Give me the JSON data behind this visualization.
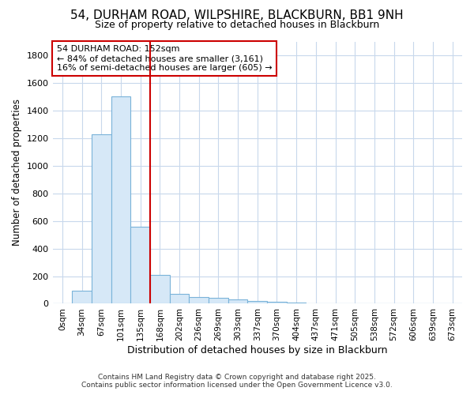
{
  "title1": "54, DURHAM ROAD, WILPSHIRE, BLACKBURN, BB1 9NH",
  "title2": "Size of property relative to detached houses in Blackburn",
  "xlabel": "Distribution of detached houses by size in Blackburn",
  "ylabel": "Number of detached properties",
  "bar_labels": [
    "0sqm",
    "34sqm",
    "67sqm",
    "101sqm",
    "135sqm",
    "168sqm",
    "202sqm",
    "236sqm",
    "269sqm",
    "303sqm",
    "337sqm",
    "370sqm",
    "404sqm",
    "437sqm",
    "471sqm",
    "505sqm",
    "538sqm",
    "572sqm",
    "606sqm",
    "639sqm",
    "673sqm"
  ],
  "bar_values": [
    0,
    97,
    1230,
    1500,
    560,
    210,
    72,
    47,
    40,
    33,
    22,
    15,
    8,
    5,
    3,
    2,
    1,
    0,
    0,
    0,
    0
  ],
  "bar_color": "#d6e8f7",
  "bar_edgecolor": "#7ab3d9",
  "vline_color": "#cc0000",
  "vline_x_index": 4.515,
  "annotation_text": "54 DURHAM ROAD: 152sqm\n← 84% of detached houses are smaller (3,161)\n16% of semi-detached houses are larger (605) →",
  "annotation_box_color": "#ffffff",
  "annotation_box_edgecolor": "#cc0000",
  "ylim": [
    0,
    1900
  ],
  "yticks": [
    0,
    200,
    400,
    600,
    800,
    1000,
    1200,
    1400,
    1600,
    1800
  ],
  "footer1": "Contains HM Land Registry data © Crown copyright and database right 2025.",
  "footer2": "Contains public sector information licensed under the Open Government Licence v3.0.",
  "bg_color": "#ffffff",
  "plot_bg_color": "#ffffff",
  "grid_color": "#c8d8ec",
  "title1_fontsize": 11,
  "title2_fontsize": 9
}
